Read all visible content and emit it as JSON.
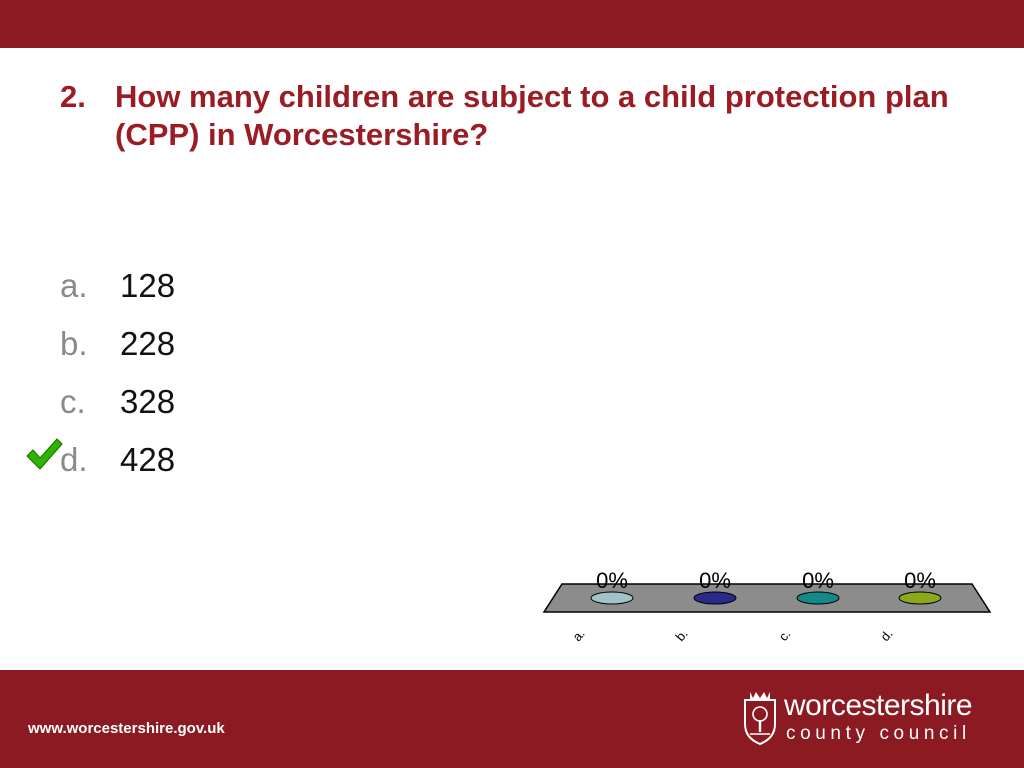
{
  "question": {
    "number": "2.",
    "text": "How many children are subject to a child protection plan (CPP) in Worcestershire?"
  },
  "answers": [
    {
      "letter": "a.",
      "value": "128",
      "correct": false
    },
    {
      "letter": "b.",
      "value": "228",
      "correct": false
    },
    {
      "letter": "c.",
      "value": "328",
      "correct": false
    },
    {
      "letter": "d.",
      "value": "428",
      "correct": true
    }
  ],
  "chart_data": {
    "type": "bar",
    "categories": [
      "a.",
      "b.",
      "c.",
      "d."
    ],
    "values": [
      0,
      0,
      0,
      0
    ],
    "data_labels": [
      "0%",
      "0%",
      "0%",
      "0%"
    ],
    "colors": [
      "#9fc3c8",
      "#2a2a8c",
      "#138a8a",
      "#8aaa1a"
    ],
    "floor_color": "#8c8c8c"
  },
  "footer": {
    "url": "www.worcestershire.gov.uk",
    "logo_line1": "worcestershire",
    "logo_line2": "county council"
  },
  "colors": {
    "brand_red": "#8b1a22",
    "title_red": "#9b1c24",
    "check_green": "#2db300"
  },
  "icons": {
    "check": "check-icon",
    "crest": "crest-icon"
  }
}
